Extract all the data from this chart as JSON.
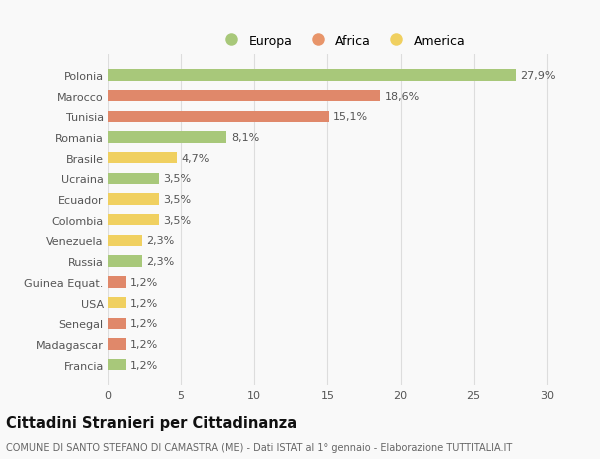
{
  "categories": [
    "Francia",
    "Madagascar",
    "Senegal",
    "USA",
    "Guinea Equat.",
    "Russia",
    "Venezuela",
    "Colombia",
    "Ecuador",
    "Ucraina",
    "Brasile",
    "Romania",
    "Tunisia",
    "Marocco",
    "Polonia"
  ],
  "values": [
    1.2,
    1.2,
    1.2,
    1.2,
    1.2,
    2.3,
    2.3,
    3.5,
    3.5,
    3.5,
    4.7,
    8.1,
    15.1,
    18.6,
    27.9
  ],
  "labels": [
    "1,2%",
    "1,2%",
    "1,2%",
    "1,2%",
    "1,2%",
    "2,3%",
    "2,3%",
    "3,5%",
    "3,5%",
    "3,5%",
    "4,7%",
    "8,1%",
    "15,1%",
    "18,6%",
    "27,9%"
  ],
  "colors": [
    "#a8c87a",
    "#e0886a",
    "#e0886a",
    "#f0d060",
    "#e0886a",
    "#a8c87a",
    "#f0d060",
    "#f0d060",
    "#f0d060",
    "#a8c87a",
    "#f0d060",
    "#a8c87a",
    "#e0886a",
    "#e0886a",
    "#a8c87a"
  ],
  "legend_labels": [
    "Europa",
    "Africa",
    "America"
  ],
  "legend_colors": [
    "#a8c87a",
    "#e8956a",
    "#f0d060"
  ],
  "title": "Cittadini Stranieri per Cittadinanza",
  "subtitle": "COMUNE DI SANTO STEFANO DI CAMASTRA (ME) - Dati ISTAT al 1° gennaio - Elaborazione TUTTITALIA.IT",
  "xlim": [
    0,
    32
  ],
  "xticks": [
    0,
    5,
    10,
    15,
    20,
    25,
    30
  ],
  "bar_height": 0.55,
  "background_color": "#f9f9f9",
  "grid_color": "#dddddd",
  "text_color": "#555555",
  "title_color": "#111111",
  "subtitle_color": "#666666",
  "label_fontsize": 8.0,
  "tick_fontsize": 8.0,
  "title_fontsize": 10.5,
  "subtitle_fontsize": 7.0
}
